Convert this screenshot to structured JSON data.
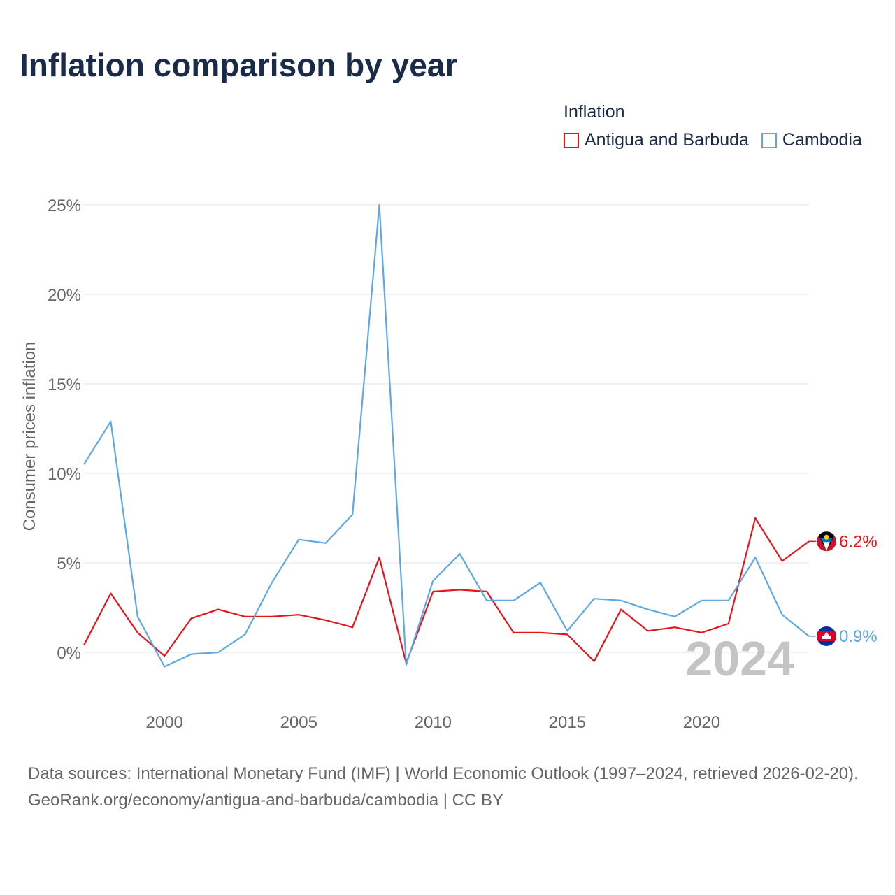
{
  "title": "Inflation comparison by year",
  "legend": {
    "title": "Inflation",
    "items": [
      {
        "label": "Antigua and Barbuda",
        "color": "#e8141b"
      },
      {
        "label": "Cambodia",
        "color": "#5ea8e6"
      }
    ]
  },
  "footer": {
    "sources": "Data sources: International Monetary Fund (IMF) | World Economic Outlook (1997–2024, retrieved 2026-02-20).",
    "attribution": "GeoRank.org/economy/antigua-and-barbuda/cambodia | CC BY"
  },
  "chart_data": {
    "type": "line",
    "title": "Inflation comparison by year",
    "xlabel": "",
    "ylabel": "Consumer prices inflation",
    "xlim": [
      1997,
      2024
    ],
    "ylim": [
      -3,
      25
    ],
    "x_ticks": [
      2000,
      2005,
      2010,
      2015,
      2020
    ],
    "y_ticks": [
      0,
      5,
      10,
      15,
      20,
      25
    ],
    "y_tick_labels": [
      "0%",
      "5%",
      "10%",
      "15%",
      "20%",
      "25%"
    ],
    "grid": true,
    "legend_position": "top-right",
    "year_watermark": "2024",
    "x": [
      1997,
      1998,
      1999,
      2000,
      2001,
      2002,
      2003,
      2004,
      2005,
      2006,
      2007,
      2008,
      2009,
      2010,
      2011,
      2012,
      2013,
      2014,
      2015,
      2016,
      2017,
      2018,
      2019,
      2020,
      2021,
      2022,
      2023,
      2024
    ],
    "series": [
      {
        "name": "Antigua and Barbuda",
        "color": "#e8141b",
        "end_label": "6.2%",
        "values": [
          0.4,
          3.3,
          1.1,
          -0.2,
          1.9,
          2.4,
          2.0,
          2.0,
          2.1,
          1.8,
          1.4,
          5.3,
          -0.6,
          3.4,
          3.5,
          3.4,
          1.1,
          1.1,
          1.0,
          -0.5,
          2.4,
          1.2,
          1.4,
          1.1,
          1.6,
          7.5,
          5.1,
          6.2
        ]
      },
      {
        "name": "Cambodia",
        "color": "#5ea8e6",
        "end_label": "0.9%",
        "values": [
          10.5,
          12.9,
          2.0,
          -0.8,
          -0.1,
          0.0,
          1.0,
          3.9,
          6.3,
          6.1,
          7.7,
          25.0,
          -0.7,
          4.0,
          5.5,
          2.9,
          2.9,
          3.9,
          1.2,
          3.0,
          2.9,
          2.4,
          2.0,
          2.9,
          2.9,
          5.3,
          2.1,
          0.9
        ]
      }
    ]
  }
}
